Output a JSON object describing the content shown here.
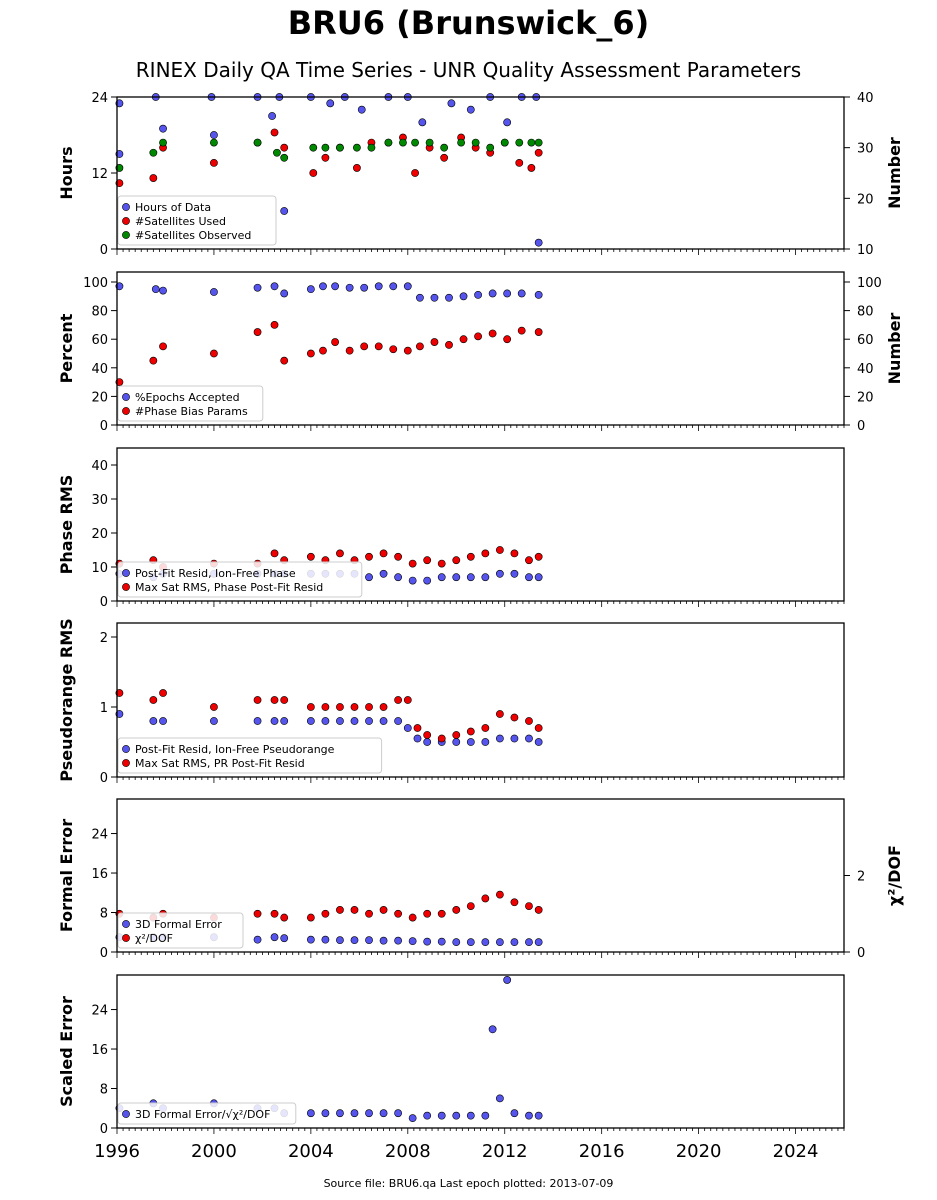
{
  "page": {
    "title": "BRU6 (Brunswick_6)",
    "subtitle": "RINEX Daily QA Time Series - UNR Quality Assessment Parameters",
    "footer": "Source file: BRU6.qa Last epoch plotted: 2013-07-09"
  },
  "colors": {
    "blue": "#5555ee",
    "red": "#ee0000",
    "green": "#008800",
    "edge": "#000000"
  },
  "chart_data": [
    {
      "type": "scatter",
      "ylabel": "Hours",
      "y2label": "Number",
      "ylim": [
        0,
        24
      ],
      "yticks": [
        "0",
        "12",
        "24"
      ],
      "y2lim": [
        10,
        40
      ],
      "y2ticks": [
        "10",
        "20",
        "30",
        "40"
      ],
      "xlim": [
        1996,
        2026
      ],
      "xticks": [
        "1996",
        "2000",
        "2004",
        "2008",
        "2012",
        "2016",
        "2020",
        "2024"
      ],
      "series": [
        {
          "name": "Hours of Data",
          "color": "blue",
          "axis": "left",
          "x": [
            1996.1,
            1996.1,
            1997.6,
            1997.9,
            1999.9,
            2000.0,
            2001.8,
            2002.4,
            2002.7,
            2002.9,
            2004.0,
            2004.8,
            2005.4,
            2006.1,
            2007.2,
            2008.0,
            2008.6,
            2009.8,
            2010.6,
            2011.4,
            2012.1,
            2012.7,
            2013.3,
            2013.4
          ],
          "y": [
            23,
            15,
            24,
            19,
            24,
            18,
            24,
            21,
            24,
            6,
            24,
            23,
            24,
            22,
            24,
            24,
            20,
            23,
            22,
            24,
            20,
            24,
            24,
            1
          ]
        },
        {
          "name": "#Satellites Used",
          "color": "red",
          "axis": "right",
          "x": [
            1996.1,
            1997.5,
            1997.9,
            2000.0,
            2001.8,
            2002.5,
            2002.9,
            2004.1,
            2004.6,
            2005.2,
            2005.9,
            2006.5,
            2007.2,
            2007.8,
            2008.3,
            2008.9,
            2009.5,
            2010.2,
            2010.8,
            2011.4,
            2012.0,
            2012.6,
            2013.1,
            2013.4
          ],
          "y": [
            23,
            24,
            30,
            27,
            31,
            33,
            30,
            25,
            28,
            30,
            26,
            31,
            31,
            32,
            25,
            30,
            28,
            32,
            30,
            29,
            31,
            27,
            26,
            29
          ]
        },
        {
          "name": "#Satellites Observed",
          "color": "green",
          "axis": "right",
          "x": [
            1996.1,
            1997.5,
            1997.9,
            2000.0,
            2001.8,
            2002.6,
            2002.9,
            2004.1,
            2004.6,
            2005.2,
            2005.9,
            2006.5,
            2007.2,
            2007.8,
            2008.3,
            2008.9,
            2009.5,
            2010.2,
            2010.8,
            2011.4,
            2012.0,
            2012.6,
            2013.1,
            2013.4
          ],
          "y": [
            26,
            29,
            31,
            31,
            31,
            29,
            28,
            30,
            30,
            30,
            30,
            30,
            31,
            31,
            31,
            31,
            30,
            31,
            31,
            30,
            31,
            31,
            31,
            31
          ]
        }
      ]
    },
    {
      "type": "scatter",
      "ylabel": "Percent",
      "y2label": "Number",
      "ylim": [
        0,
        107
      ],
      "yticks": [
        "0",
        "20",
        "40",
        "60",
        "80",
        "100"
      ],
      "y2lim": [
        0,
        107
      ],
      "y2ticks": [
        "0",
        "20",
        "40",
        "60",
        "80",
        "100"
      ],
      "xlim": [
        1996,
        2026
      ],
      "xticks": [
        "1996",
        "2000",
        "2004",
        "2008",
        "2012",
        "2016",
        "2020",
        "2024"
      ],
      "series": [
        {
          "name": "%Epochs Accepted",
          "color": "blue",
          "axis": "left",
          "x": [
            1996.1,
            1997.6,
            1997.9,
            2000.0,
            2001.8,
            2002.5,
            2002.9,
            2004.0,
            2004.5,
            2005.0,
            2005.6,
            2006.2,
            2006.8,
            2007.4,
            2008.0,
            2008.5,
            2009.1,
            2009.7,
            2010.3,
            2010.9,
            2011.5,
            2012.1,
            2012.7,
            2013.4
          ],
          "y": [
            97,
            95,
            94,
            93,
            96,
            97,
            92,
            95,
            97,
            97,
            96,
            96,
            97,
            97,
            97,
            89,
            89,
            89,
            90,
            91,
            92,
            92,
            92,
            91
          ]
        },
        {
          "name": "#Phase Bias Params",
          "color": "red",
          "axis": "right",
          "x": [
            1996.1,
            1997.5,
            1997.9,
            2000.0,
            2001.8,
            2002.5,
            2002.9,
            2004.0,
            2004.5,
            2005.0,
            2005.6,
            2006.2,
            2006.8,
            2007.4,
            2008.0,
            2008.5,
            2009.1,
            2009.7,
            2010.3,
            2010.9,
            2011.5,
            2012.1,
            2012.7,
            2013.4
          ],
          "y": [
            30,
            45,
            55,
            50,
            65,
            70,
            45,
            50,
            52,
            58,
            52,
            55,
            55,
            53,
            52,
            55,
            58,
            56,
            60,
            62,
            64,
            60,
            66,
            65
          ]
        }
      ]
    },
    {
      "type": "scatter",
      "ylabel": "Phase RMS",
      "ylim": [
        0,
        45
      ],
      "yticks": [
        "0",
        "10",
        "20",
        "30",
        "40"
      ],
      "xlim": [
        1996,
        2026
      ],
      "xticks": [
        "1996",
        "2000",
        "2004",
        "2008",
        "2012",
        "2016",
        "2020",
        "2024"
      ],
      "series": [
        {
          "name": "Post-Fit Resid, Ion-Free Phase",
          "color": "blue",
          "axis": "left",
          "x": [
            1996.1,
            1997.5,
            1997.9,
            2000.0,
            2001.8,
            2002.5,
            2002.9,
            2004.0,
            2004.6,
            2005.2,
            2005.8,
            2006.4,
            2007.0,
            2007.6,
            2008.2,
            2008.8,
            2009.4,
            2010.0,
            2010.6,
            2011.2,
            2011.8,
            2012.4,
            2013.0,
            2013.4
          ],
          "y": [
            8,
            7,
            8,
            8,
            8,
            8,
            8,
            8,
            8,
            8,
            8,
            7,
            8,
            7,
            6,
            6,
            7,
            7,
            7,
            7,
            8,
            8,
            7,
            7
          ]
        },
        {
          "name": "Max Sat RMS, Phase Post-Fit Resid",
          "color": "red",
          "axis": "left",
          "x": [
            1996.1,
            1997.5,
            1997.9,
            2000.0,
            2001.8,
            2002.5,
            2002.9,
            2004.0,
            2004.6,
            2005.2,
            2005.8,
            2006.4,
            2007.0,
            2007.6,
            2008.2,
            2008.8,
            2009.4,
            2010.0,
            2010.6,
            2011.2,
            2011.8,
            2012.4,
            2013.0,
            2013.4
          ],
          "y": [
            11,
            12,
            10,
            11,
            11,
            14,
            12,
            13,
            12,
            14,
            12,
            13,
            14,
            13,
            11,
            12,
            11,
            12,
            13,
            14,
            15,
            14,
            12,
            13
          ]
        }
      ]
    },
    {
      "type": "scatter",
      "ylabel": "Pseudorange RMS",
      "ylim": [
        0,
        2.2
      ],
      "yticks": [
        "0",
        "1",
        "2"
      ],
      "xlim": [
        1996,
        2026
      ],
      "xticks": [
        "1996",
        "2000",
        "2004",
        "2008",
        "2012",
        "2016",
        "2020",
        "2024"
      ],
      "series": [
        {
          "name": "Post-Fit Resid, Ion-Free Pseudorange",
          "color": "blue",
          "axis": "left",
          "x": [
            1996.1,
            1997.5,
            1997.9,
            2000.0,
            2001.8,
            2002.5,
            2002.9,
            2004.0,
            2004.6,
            2005.2,
            2005.8,
            2006.4,
            2007.0,
            2007.6,
            2008.0,
            2008.4,
            2008.8,
            2009.4,
            2010.0,
            2010.6,
            2011.2,
            2011.8,
            2012.4,
            2013.0,
            2013.4
          ],
          "y": [
            0.9,
            0.8,
            0.8,
            0.8,
            0.8,
            0.8,
            0.8,
            0.8,
            0.8,
            0.8,
            0.8,
            0.8,
            0.8,
            0.8,
            0.7,
            0.55,
            0.5,
            0.5,
            0.5,
            0.5,
            0.5,
            0.55,
            0.55,
            0.55,
            0.5
          ]
        },
        {
          "name": "Max Sat RMS, PR Post-Fit Resid",
          "color": "red",
          "axis": "left",
          "x": [
            1996.1,
            1997.5,
            1997.9,
            2000.0,
            2001.8,
            2002.5,
            2002.9,
            2004.0,
            2004.6,
            2005.2,
            2005.8,
            2006.4,
            2007.0,
            2007.6,
            2008.0,
            2008.4,
            2008.8,
            2009.4,
            2010.0,
            2010.6,
            2011.2,
            2011.8,
            2012.4,
            2013.0,
            2013.4
          ],
          "y": [
            1.2,
            1.1,
            1.2,
            1.0,
            1.1,
            1.1,
            1.1,
            1.0,
            1.0,
            1.0,
            1.0,
            1.0,
            1.0,
            1.1,
            1.1,
            0.7,
            0.6,
            0.55,
            0.6,
            0.65,
            0.7,
            0.9,
            0.85,
            0.8,
            0.7
          ]
        }
      ]
    },
    {
      "type": "scatter",
      "ylabel": "Formal Error",
      "y2label": "χ²/DOF",
      "ylim": [
        0,
        31
      ],
      "yticks": [
        "0",
        "8",
        "16",
        "24"
      ],
      "y2lim": [
        0,
        4.0
      ],
      "y2ticks": [
        "0",
        "2"
      ],
      "xlim": [
        1996,
        2026
      ],
      "xticks": [
        "1996",
        "2000",
        "2004",
        "2008",
        "2012",
        "2016",
        "2020",
        "2024"
      ],
      "series": [
        {
          "name": "3D Formal Error",
          "color": "blue",
          "axis": "left",
          "x": [
            1996.1,
            1997.5,
            1997.9,
            2000.0,
            2001.8,
            2002.5,
            2002.9,
            2004.0,
            2004.6,
            2005.2,
            2005.8,
            2006.4,
            2007.0,
            2007.6,
            2008.2,
            2008.8,
            2009.4,
            2010.0,
            2010.6,
            2011.2,
            2011.8,
            2012.4,
            2013.0,
            2013.4
          ],
          "y": [
            3,
            3,
            3,
            3,
            2.5,
            3,
            2.8,
            2.5,
            2.5,
            2.4,
            2.4,
            2.4,
            2.3,
            2.3,
            2.2,
            2.1,
            2.1,
            2,
            2,
            2,
            2,
            2,
            2,
            2
          ]
        },
        {
          "name": "χ²/DOF",
          "color": "red",
          "axis": "right",
          "x": [
            1996.1,
            1997.5,
            1997.9,
            2000.0,
            2001.8,
            2002.5,
            2002.9,
            2004.0,
            2004.6,
            2005.2,
            2005.8,
            2006.4,
            2007.0,
            2007.6,
            2008.2,
            2008.8,
            2009.4,
            2010.0,
            2010.6,
            2011.2,
            2011.8,
            2012.4,
            2013.0,
            2013.4
          ],
          "y": [
            1.0,
            0.9,
            1.0,
            0.9,
            1.0,
            1.0,
            0.9,
            0.9,
            1.0,
            1.1,
            1.1,
            1.0,
            1.1,
            1.0,
            0.9,
            1.0,
            1.0,
            1.1,
            1.2,
            1.4,
            1.5,
            1.3,
            1.2,
            1.1
          ]
        }
      ]
    },
    {
      "type": "scatter",
      "ylabel": "Scaled Error",
      "ylim": [
        0,
        31
      ],
      "yticks": [
        "0",
        "8",
        "16",
        "24"
      ],
      "xlim": [
        1996,
        2026
      ],
      "xticks": [
        "1996",
        "2000",
        "2004",
        "2008",
        "2012",
        "2016",
        "2020",
        "2024"
      ],
      "series": [
        {
          "name": "3D Formal Error/√χ²/DOF",
          "color": "blue",
          "axis": "left",
          "x": [
            1996.1,
            1997.5,
            1997.9,
            2000.0,
            2001.8,
            2002.5,
            2002.9,
            2004.0,
            2004.6,
            2005.2,
            2005.8,
            2006.4,
            2007.0,
            2007.6,
            2008.2,
            2008.8,
            2009.4,
            2010.0,
            2010.6,
            2011.2,
            2011.5,
            2011.8,
            2012.1,
            2012.4,
            2013.0,
            2013.4
          ],
          "y": [
            4,
            5,
            4,
            5,
            4,
            4,
            3,
            3,
            3,
            3,
            3,
            3,
            3,
            3,
            2,
            2.5,
            2.5,
            2.5,
            2.5,
            2.5,
            20,
            6,
            30,
            3,
            2.5,
            2.5
          ]
        }
      ]
    }
  ]
}
